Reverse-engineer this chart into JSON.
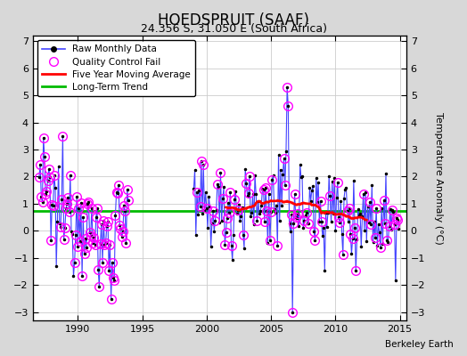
{
  "title": "HOEDSPRUIT (SAAF)",
  "subtitle": "24.356 S, 31.050 E (South Africa)",
  "ylabel": "Temperature Anomaly (°C)",
  "watermark": "Berkeley Earth",
  "xlim": [
    1986.5,
    2015.5
  ],
  "ylim": [
    -3.3,
    7.2
  ],
  "yticks": [
    -3,
    -2,
    -1,
    0,
    1,
    2,
    3,
    4,
    5,
    6,
    7
  ],
  "xticks": [
    1990,
    1995,
    2000,
    2005,
    2010,
    2015
  ],
  "fig_bg_color": "#d8d8d8",
  "plot_bg_color": "#ffffff",
  "raw_color": "#4444ff",
  "qc_color": "#ff00ff",
  "moving_avg_color": "#ff0000",
  "trend_color": "#00bb00",
  "trend_y": 0.72
}
